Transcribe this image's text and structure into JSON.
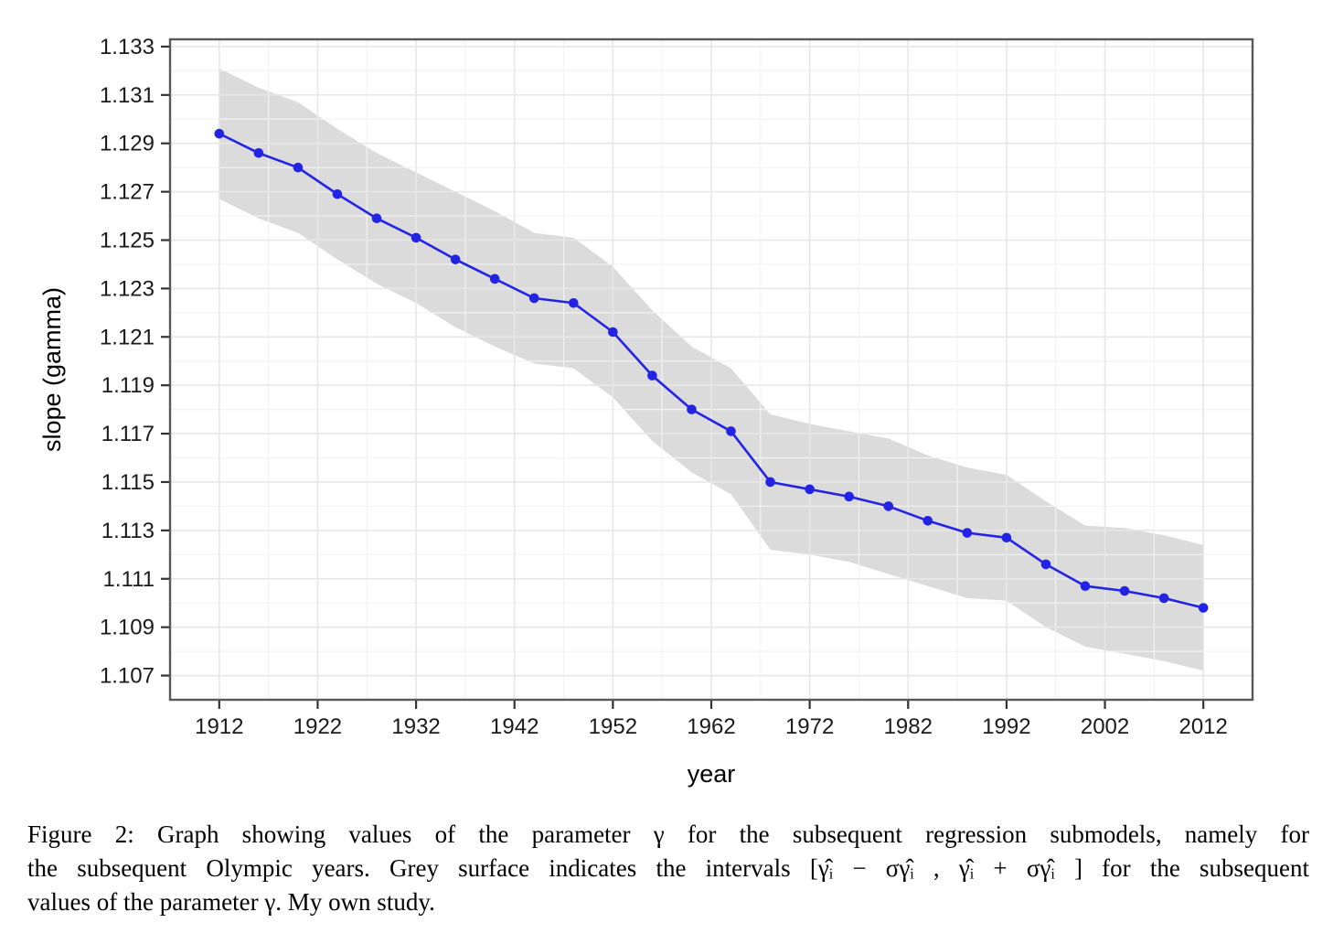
{
  "figure": {
    "caption": {
      "lines": [
        "Figure 2: Graph showing values of the parameter γ for the subsequent regression submodels, namely for",
        "the subsequent Olympic years. Grey surface indicates the intervals [γ̂ᵢ − σγ̂ᵢ , γ̂ᵢ + σγ̂ᵢ ] for the subsequent",
        "values of the parameter γ. My own study."
      ]
    }
  },
  "chart_data": {
    "type": "line",
    "title": "",
    "xlabel": "year",
    "ylabel": "slope (gamma)",
    "legend": "none",
    "grid": "major+minor",
    "band_meaning": "grey ribbon = value ± sigma, i.e. [γ̂ᵢ − σγ̂ᵢ, γ̂ᵢ + σγ̂ᵢ]",
    "x": [
      1912,
      1916,
      1920,
      1924,
      1928,
      1932,
      1936,
      1940,
      1944,
      1948,
      1952,
      1956,
      1960,
      1964,
      1968,
      1972,
      1976,
      1980,
      1984,
      1988,
      1992,
      1996,
      2000,
      2004,
      2008,
      2012
    ],
    "values": [
      1.1294,
      1.1286,
      1.128,
      1.1269,
      1.1259,
      1.1251,
      1.1242,
      1.1234,
      1.1226,
      1.1224,
      1.1212,
      1.1194,
      1.118,
      1.1171,
      1.115,
      1.1147,
      1.1144,
      1.114,
      1.1134,
      1.1129,
      1.1127,
      1.1116,
      1.1107,
      1.1105,
      1.1102,
      1.1098
    ],
    "sigma": [
      0.0027,
      0.0027,
      0.0027,
      0.0027,
      0.0027,
      0.0027,
      0.0028,
      0.0028,
      0.0027,
      0.0027,
      0.0027,
      0.0027,
      0.0026,
      0.0026,
      0.0028,
      0.0027,
      0.0027,
      0.0028,
      0.0027,
      0.0027,
      0.0026,
      0.0026,
      0.0025,
      0.0026,
      0.0026,
      0.0026
    ],
    "xlim": [
      1907,
      2017
    ],
    "ylim": [
      1.106,
      1.1333
    ],
    "x_ticks": [
      1912,
      1922,
      1932,
      1942,
      1952,
      1962,
      1972,
      1982,
      1992,
      2002,
      2012
    ],
    "x_tick_labels": [
      "1912",
      "1922",
      "1932",
      "1942",
      "1952",
      "1962",
      "1972",
      "1982",
      "1992",
      "2002",
      "2012"
    ],
    "x_minor_ticks": [
      1917,
      1927,
      1937,
      1947,
      1957,
      1967,
      1977,
      1987,
      1997,
      2007
    ],
    "y_ticks": [
      1.107,
      1.109,
      1.111,
      1.113,
      1.115,
      1.117,
      1.119,
      1.121,
      1.123,
      1.125,
      1.127,
      1.129,
      1.131,
      1.133
    ],
    "y_tick_labels": [
      "1.107",
      "1.109",
      "1.111",
      "1.113",
      "1.115",
      "1.117",
      "1.119",
      "1.121",
      "1.123",
      "1.125",
      "1.127",
      "1.129",
      "1.131",
      "1.133"
    ],
    "y_minor_ticks": [
      1.106,
      1.108,
      1.11,
      1.112,
      1.114,
      1.116,
      1.118,
      1.12,
      1.122,
      1.124,
      1.126,
      1.128,
      1.13,
      1.132
    ],
    "colors": {
      "line": "#2323e6",
      "point": "#2323e6",
      "band": "#dbdbdb",
      "grid_major": "#e7e7e7",
      "grid_minor": "#f3f3f3",
      "panel_border": "#595959",
      "tick": "#333333",
      "text": "#1a1a1a"
    }
  }
}
